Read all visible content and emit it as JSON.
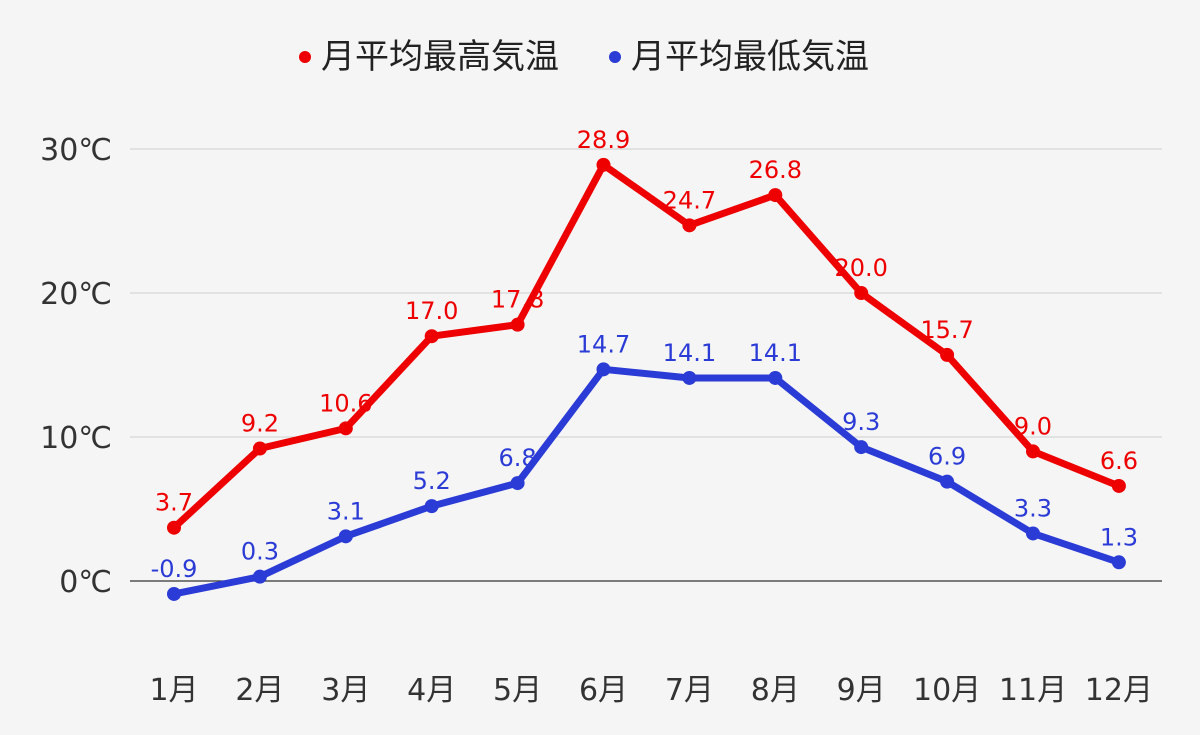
{
  "chart_data": {
    "type": "line",
    "categories": [
      "1月",
      "2月",
      "3月",
      "4月",
      "5月",
      "6月",
      "7月",
      "8月",
      "9月",
      "10月",
      "11月",
      "12月"
    ],
    "series": [
      {
        "name": "月平均最高気温",
        "color": "#ee0000",
        "values": [
          3.7,
          9.2,
          10.6,
          17.0,
          17.8,
          28.9,
          24.7,
          26.8,
          20.0,
          15.7,
          9.0,
          6.6
        ]
      },
      {
        "name": "月平均最低気温",
        "color": "#2b3bd6",
        "values": [
          -0.9,
          0.3,
          3.1,
          5.2,
          6.8,
          14.7,
          14.1,
          14.1,
          9.3,
          6.9,
          3.3,
          1.3
        ]
      }
    ],
    "yticks": [
      0,
      10,
      20,
      30
    ],
    "ytick_labels": [
      "0℃",
      "10℃",
      "20℃",
      "30℃"
    ],
    "ylim": [
      -6,
      36
    ],
    "grid": true,
    "legend_position": "top-center",
    "data_labels": true
  }
}
